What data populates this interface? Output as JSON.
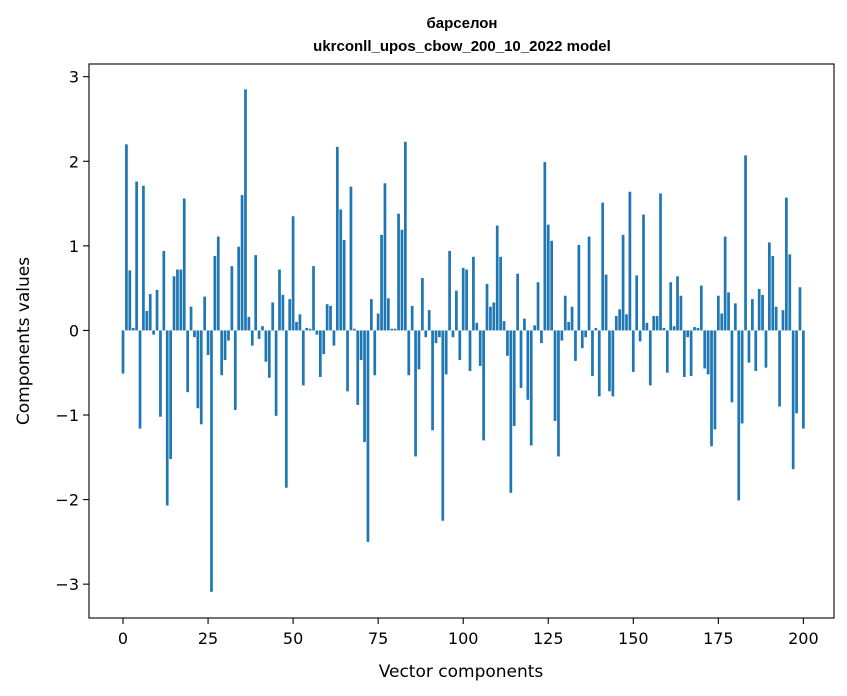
{
  "chart_data": {
    "type": "bar",
    "title_line1": "барселон",
    "title_line2": "ukrconll_upos_cbow_200_10_2022 model",
    "xlabel": "Vector components",
    "ylabel": "Components values",
    "xlim": [
      -10,
      209
    ],
    "ylim": [
      -3.4,
      3.15
    ],
    "xticks": [
      0,
      25,
      50,
      75,
      100,
      125,
      150,
      175,
      200
    ],
    "yticks": [
      -3,
      -2,
      -1,
      0,
      1,
      2,
      3
    ],
    "ytick_labels": [
      "−3",
      "−2",
      "−1",
      "0",
      "1",
      "2",
      "3"
    ],
    "grid": false,
    "bar_color": "#1f77b4",
    "values": [
      -0.51,
      2.2,
      0.71,
      0.03,
      1.76,
      -1.16,
      1.71,
      0.23,
      0.43,
      -0.05,
      0.48,
      -1.02,
      0.94,
      -2.07,
      -1.52,
      0.64,
      0.72,
      0.72,
      1.56,
      -0.73,
      0.28,
      -0.08,
      -0.92,
      -1.11,
      0.4,
      -0.29,
      -3.09,
      0.88,
      1.11,
      -0.53,
      -0.35,
      -0.12,
      0.76,
      -0.94,
      0.99,
      1.6,
      2.85,
      0.16,
      -0.18,
      0.89,
      -0.1,
      0.05,
      -0.37,
      -0.56,
      0.33,
      -1.01,
      0.72,
      0.42,
      -1.86,
      0.37,
      1.35,
      0.1,
      0.19,
      -0.65,
      0.03,
      0.02,
      0.76,
      -0.05,
      -0.55,
      -0.28,
      0.31,
      0.29,
      -0.18,
      2.17,
      1.43,
      1.07,
      -0.72,
      1.7,
      0.02,
      -0.88,
      -0.35,
      -1.32,
      -2.5,
      0.37,
      -0.53,
      0.2,
      1.13,
      1.74,
      0.38,
      0.02,
      0.02,
      1.38,
      1.19,
      2.23,
      -0.53,
      0.29,
      -1.49,
      -0.46,
      0.62,
      -0.08,
      0.24,
      -1.18,
      -0.15,
      -0.08,
      -2.25,
      -0.52,
      0.94,
      -0.08,
      0.47,
      -0.35,
      0.74,
      0.72,
      -0.48,
      0.87,
      0.09,
      -0.42,
      -1.3,
      0.55,
      0.28,
      0.33,
      1.24,
      0.87,
      0.11,
      -0.3,
      -1.92,
      -1.13,
      0.67,
      -0.68,
      0.14,
      -0.82,
      -1.36,
      0.06,
      0.57,
      -0.15,
      1.99,
      1.25,
      1.06,
      -1.07,
      -1.49,
      -0.12,
      0.41,
      0.1,
      0.28,
      -0.36,
      1.01,
      -0.21,
      -0.08,
      1.11,
      -0.54,
      0.03,
      -0.78,
      1.51,
      0.66,
      -0.72,
      -0.78,
      0.17,
      0.25,
      1.13,
      0.19,
      1.64,
      -0.49,
      0.65,
      -0.13,
      1.37,
      0.09,
      -0.65,
      0.17,
      0.17,
      1.62,
      0.03,
      -0.5,
      0.57,
      0.05,
      0.64,
      0.41,
      -0.55,
      -0.08,
      -0.54,
      0.04,
      0.03,
      0.53,
      -0.45,
      -0.52,
      -1.37,
      -1.17,
      0.41,
      0.2,
      1.11,
      0.45,
      -0.85,
      0.32,
      -2.01,
      -1.1,
      2.07,
      -0.38,
      0.37,
      -0.48,
      0.49,
      0.42,
      -0.44,
      1.04,
      0.88,
      0.28,
      -0.9,
      0.24,
      1.57,
      0.9,
      -1.64,
      -0.98,
      0.51,
      -1.16
    ]
  }
}
